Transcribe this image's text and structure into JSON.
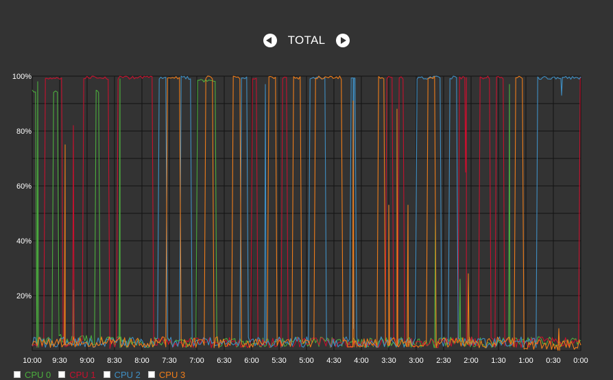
{
  "header": {
    "title": "TOTAL",
    "prev_icon": "chevron-left-circle-icon",
    "next_icon": "chevron-right-circle-icon"
  },
  "colors": {
    "background": "#333333",
    "grid": "#111111",
    "text": "#ffffff",
    "cpu0": "#4caf3e",
    "cpu1": "#c8102e",
    "cpu2": "#3f8fc4",
    "cpu3": "#f07d19"
  },
  "chart_data": {
    "type": "line",
    "title": "TOTAL",
    "xlabel": "",
    "ylabel": "",
    "ylim": [
      0,
      100
    ],
    "yticks": [
      20,
      40,
      60,
      80,
      100
    ],
    "ytick_labels": [
      "20%",
      "40%",
      "60%",
      "80%",
      "100%"
    ],
    "xtick_labels": [
      "10:00",
      "9:30",
      "9:00",
      "8:30",
      "8:00",
      "7:30",
      "7:00",
      "6:30",
      "6:00",
      "5:30",
      "5:00",
      "4:30",
      "4:00",
      "3:30",
      "3:00",
      "2:30",
      "2:00",
      "1:30",
      "1:00",
      "0:30",
      "0:00"
    ],
    "grid": true,
    "legend": "bottom-left",
    "series": [
      {
        "name": "CPU 0",
        "color": "#4caf3e",
        "segments": [
          [
            0.0,
            0.15,
            95
          ],
          [
            0.15,
            0.75,
            3
          ],
          [
            0.75,
            0.95,
            95
          ],
          [
            0.95,
            2.3,
            4
          ],
          [
            2.3,
            2.45,
            95
          ],
          [
            2.45,
            6.0,
            3
          ],
          [
            6.0,
            6.7,
            99
          ],
          [
            6.7,
            20.0,
            3
          ]
        ],
        "spikes": [
          [
            0.2,
            98
          ],
          [
            1.5,
            22
          ],
          [
            3.2,
            99
          ],
          [
            14.7,
            48
          ],
          [
            15.6,
            26
          ],
          [
            17.4,
            97
          ]
        ]
      },
      {
        "name": "CPU 1",
        "color": "#c8102e",
        "segments": [
          [
            0.0,
            0.45,
            3
          ],
          [
            0.45,
            1.1,
            100
          ],
          [
            1.1,
            1.85,
            3
          ],
          [
            1.85,
            2.8,
            100
          ],
          [
            2.8,
            3.1,
            2
          ],
          [
            3.1,
            4.4,
            100
          ],
          [
            4.4,
            8.0,
            3
          ],
          [
            8.0,
            8.2,
            100
          ],
          [
            8.2,
            9.1,
            3
          ],
          [
            9.1,
            9.3,
            100
          ],
          [
            9.3,
            12.9,
            3
          ],
          [
            12.9,
            13.15,
            100
          ],
          [
            13.15,
            13.35,
            3
          ],
          [
            13.35,
            13.55,
            100
          ],
          [
            13.55,
            15.55,
            3
          ],
          [
            15.55,
            15.8,
            100
          ],
          [
            15.8,
            16.3,
            3
          ],
          [
            16.3,
            16.7,
            100
          ],
          [
            16.7,
            16.9,
            3
          ],
          [
            16.9,
            17.2,
            100
          ],
          [
            17.2,
            19.95,
            3
          ],
          [
            19.95,
            20.0,
            100
          ]
        ],
        "spikes": [
          [
            1.5,
            82
          ],
          [
            15.8,
            65
          ]
        ]
      },
      {
        "name": "CPU 2",
        "color": "#3f8fc4",
        "segments": [
          [
            0.0,
            4.6,
            3
          ],
          [
            4.6,
            4.9,
            100
          ],
          [
            4.9,
            5.4,
            3
          ],
          [
            5.4,
            5.8,
            100
          ],
          [
            5.8,
            7.6,
            3
          ],
          [
            7.6,
            7.85,
            100
          ],
          [
            7.85,
            10.1,
            3
          ],
          [
            10.1,
            10.7,
            100
          ],
          [
            10.7,
            11.6,
            3
          ],
          [
            11.6,
            11.8,
            100
          ],
          [
            11.8,
            14.0,
            3
          ],
          [
            14.0,
            14.9,
            100
          ],
          [
            14.9,
            15.2,
            3
          ],
          [
            15.2,
            15.5,
            100
          ],
          [
            15.5,
            18.4,
            3
          ],
          [
            18.4,
            20.0,
            100
          ]
        ],
        "spikes": [
          [
            8.5,
            97
          ],
          [
            11.7,
            8
          ],
          [
            19.3,
            93
          ]
        ]
      },
      {
        "name": "CPU 3",
        "color": "#f07d19",
        "segments": [
          [
            0.0,
            4.9,
            3
          ],
          [
            4.9,
            5.4,
            100
          ],
          [
            5.4,
            6.3,
            3
          ],
          [
            6.3,
            6.6,
            100
          ],
          [
            6.6,
            7.3,
            3
          ],
          [
            7.3,
            7.6,
            100
          ],
          [
            7.6,
            8.6,
            3
          ],
          [
            8.6,
            8.9,
            100
          ],
          [
            8.9,
            9.5,
            3
          ],
          [
            9.5,
            9.8,
            100
          ],
          [
            9.8,
            10.3,
            3
          ],
          [
            10.3,
            11.3,
            100
          ],
          [
            11.3,
            12.6,
            3
          ],
          [
            12.6,
            12.85,
            100
          ],
          [
            12.85,
            14.4,
            3
          ],
          [
            14.4,
            14.7,
            100
          ],
          [
            14.7,
            17.6,
            3
          ],
          [
            17.6,
            17.9,
            100
          ],
          [
            17.9,
            20.0,
            2
          ]
        ],
        "spikes": [
          [
            1.2,
            75
          ],
          [
            11.7,
            91
          ],
          [
            13.0,
            53
          ],
          [
            13.3,
            88
          ],
          [
            13.7,
            53
          ],
          [
            15.9,
            28
          ],
          [
            19.2,
            8
          ]
        ]
      }
    ]
  },
  "legend": {
    "items": [
      {
        "label": "CPU 0",
        "color": "#4caf3e"
      },
      {
        "label": "CPU 1",
        "color": "#c8102e"
      },
      {
        "label": "CPU 2",
        "color": "#3f8fc4"
      },
      {
        "label": "CPU 3",
        "color": "#f07d19"
      }
    ]
  }
}
